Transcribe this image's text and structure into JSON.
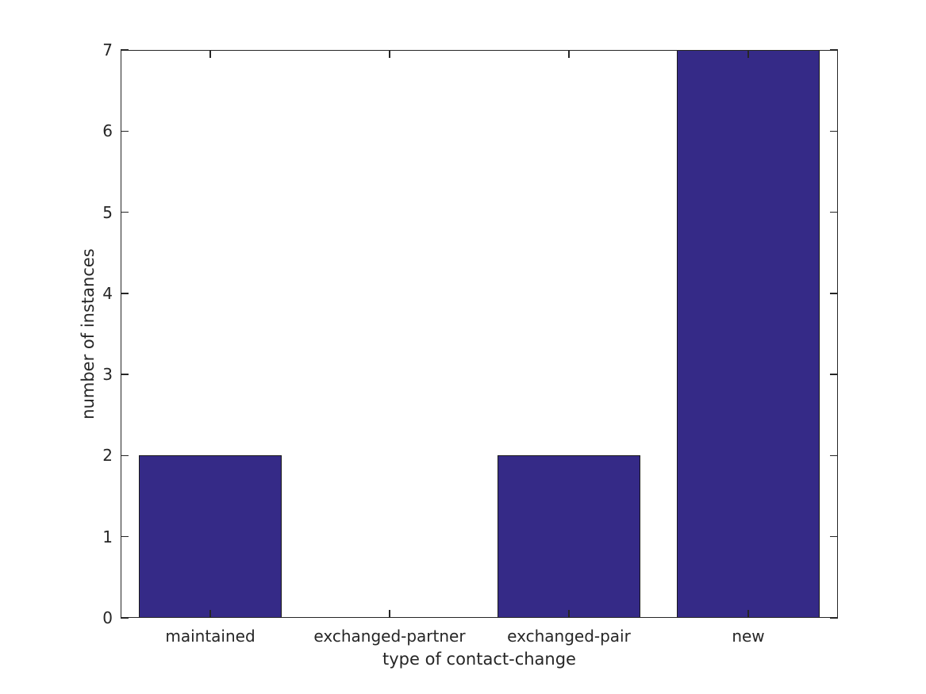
{
  "chart_data": {
    "type": "bar",
    "categories": [
      "maintained",
      "exchanged-partner",
      "exchanged-pair",
      "new"
    ],
    "values": [
      2,
      0,
      2,
      7
    ],
    "title": "",
    "xlabel": "type of contact-change",
    "ylabel": "number of instances",
    "ylim": [
      0,
      7
    ],
    "yticks": [
      0,
      1,
      2,
      3,
      4,
      5,
      6,
      7
    ],
    "bar_width_fraction": 0.8,
    "grid": false,
    "legend": "none",
    "box": true,
    "tick_direction": "in",
    "colors": {
      "bar_fill": "#352a87",
      "bar_edge": "#1a1a1a",
      "axis": "#262626",
      "text": "#262626",
      "background": "#ffffff"
    }
  }
}
